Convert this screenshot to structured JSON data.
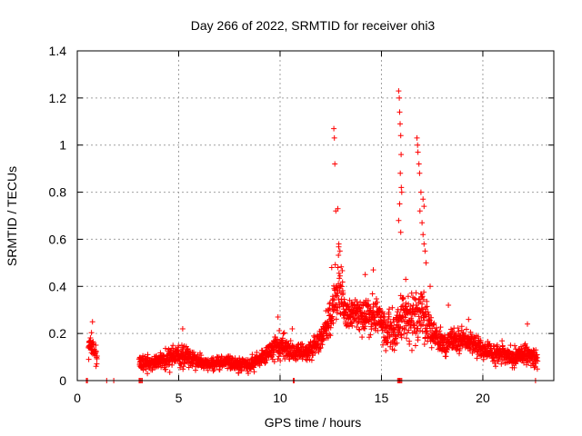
{
  "chart_data": {
    "type": "scatter",
    "title": "Day 266 of 2022, SRMTID for receiver ohi3",
    "xlabel": "GPS time / hours",
    "ylabel": "SRMTID / TECUs",
    "xlim": [
      0,
      23.5
    ],
    "ylim": [
      0,
      1.4
    ],
    "xticks": [
      0,
      5,
      10,
      15,
      20
    ],
    "yticks": [
      0,
      0.2,
      0.4,
      0.6,
      0.8,
      1,
      1.2,
      1.4
    ],
    "ytick_labels": [
      "0",
      "0.2",
      "0.4",
      "0.6",
      "0.8",
      "1",
      "1.2",
      "1.4"
    ],
    "grid": true,
    "marker": "+",
    "color": "#ff0000",
    "series": [
      {
        "name": "SRMTID",
        "profile": [
          [
            0.55,
            0.14,
            0.04
          ],
          [
            0.65,
            0.17,
            0.04
          ],
          [
            0.75,
            0.15,
            0.05
          ],
          [
            0.85,
            0.12,
            0.04
          ],
          [
            0.95,
            0.1,
            0.04
          ],
          [
            3.1,
            0.08,
            0.03
          ],
          [
            3.5,
            0.07,
            0.03
          ],
          [
            4.0,
            0.08,
            0.03
          ],
          [
            4.5,
            0.1,
            0.04
          ],
          [
            5.0,
            0.11,
            0.04
          ],
          [
            5.5,
            0.1,
            0.04
          ],
          [
            6.0,
            0.08,
            0.03
          ],
          [
            6.5,
            0.07,
            0.02
          ],
          [
            7.0,
            0.07,
            0.03
          ],
          [
            7.5,
            0.08,
            0.03
          ],
          [
            8.0,
            0.07,
            0.03
          ],
          [
            8.5,
            0.07,
            0.03
          ],
          [
            9.0,
            0.09,
            0.03
          ],
          [
            9.5,
            0.13,
            0.04
          ],
          [
            10.0,
            0.15,
            0.05
          ],
          [
            10.5,
            0.13,
            0.04
          ],
          [
            11.0,
            0.12,
            0.04
          ],
          [
            11.5,
            0.13,
            0.04
          ],
          [
            12.0,
            0.17,
            0.05
          ],
          [
            12.3,
            0.22,
            0.07
          ],
          [
            12.6,
            0.3,
            0.09
          ],
          [
            12.9,
            0.42,
            0.14
          ],
          [
            13.2,
            0.3,
            0.06
          ],
          [
            13.6,
            0.28,
            0.06
          ],
          [
            14.0,
            0.27,
            0.06
          ],
          [
            14.4,
            0.28,
            0.07
          ],
          [
            14.8,
            0.27,
            0.07
          ],
          [
            15.2,
            0.22,
            0.08
          ],
          [
            15.6,
            0.2,
            0.08
          ],
          [
            16.0,
            0.28,
            0.1
          ],
          [
            16.5,
            0.25,
            0.1
          ],
          [
            17.0,
            0.3,
            0.12
          ],
          [
            17.4,
            0.22,
            0.07
          ],
          [
            17.8,
            0.17,
            0.05
          ],
          [
            18.2,
            0.15,
            0.05
          ],
          [
            18.6,
            0.18,
            0.06
          ],
          [
            19.0,
            0.18,
            0.05
          ],
          [
            19.5,
            0.16,
            0.05
          ],
          [
            20.0,
            0.13,
            0.04
          ],
          [
            20.5,
            0.12,
            0.04
          ],
          [
            21.0,
            0.11,
            0.04
          ],
          [
            21.5,
            0.1,
            0.04
          ],
          [
            22.0,
            0.11,
            0.04
          ],
          [
            22.4,
            0.11,
            0.04
          ],
          [
            22.7,
            0.1,
            0.04
          ]
        ],
        "gaps": [
          [
            0.98,
            3.05
          ]
        ],
        "peaks": [
          [
            0.75,
            0.25
          ],
          [
            12.65,
            1.07
          ],
          [
            12.68,
            1.03
          ],
          [
            12.7,
            0.92
          ],
          [
            12.75,
            0.72
          ],
          [
            12.85,
            0.73
          ],
          [
            12.9,
            0.58
          ],
          [
            12.95,
            0.55
          ],
          [
            12.55,
            0.48
          ],
          [
            15.85,
            1.23
          ],
          [
            15.88,
            1.2
          ],
          [
            15.9,
            1.14
          ],
          [
            15.92,
            1.09
          ],
          [
            15.95,
            1.04
          ],
          [
            15.97,
            0.96
          ],
          [
            15.93,
            0.88
          ],
          [
            15.98,
            0.82
          ],
          [
            16.0,
            0.8
          ],
          [
            15.9,
            0.75
          ],
          [
            15.95,
            0.63
          ],
          [
            15.85,
            0.68
          ],
          [
            16.75,
            1.03
          ],
          [
            16.78,
            1.0
          ],
          [
            16.8,
            0.97
          ],
          [
            16.85,
            0.92
          ],
          [
            16.88,
            0.88
          ],
          [
            16.95,
            0.8
          ],
          [
            17.05,
            0.77
          ],
          [
            17.1,
            0.74
          ],
          [
            16.9,
            0.72
          ],
          [
            17.0,
            0.67
          ],
          [
            17.05,
            0.62
          ],
          [
            17.1,
            0.58
          ],
          [
            17.15,
            0.55
          ],
          [
            17.2,
            0.5
          ],
          [
            14.6,
            0.47
          ],
          [
            14.2,
            0.45
          ],
          [
            16.2,
            0.43
          ],
          [
            17.4,
            0.4
          ],
          [
            18.3,
            0.32
          ],
          [
            9.9,
            0.27
          ],
          [
            5.2,
            0.22
          ],
          [
            22.2,
            0.24
          ],
          [
            10.6,
            0.22
          ],
          [
            19.3,
            0.26
          ]
        ],
        "zeros": [
          0.45,
          0.5,
          1.45,
          1.8,
          3.05,
          3.1,
          3.15,
          3.2,
          10.65,
          10.7,
          15.8,
          15.85,
          15.9,
          15.95,
          16.0,
          22.6
        ]
      }
    ]
  }
}
